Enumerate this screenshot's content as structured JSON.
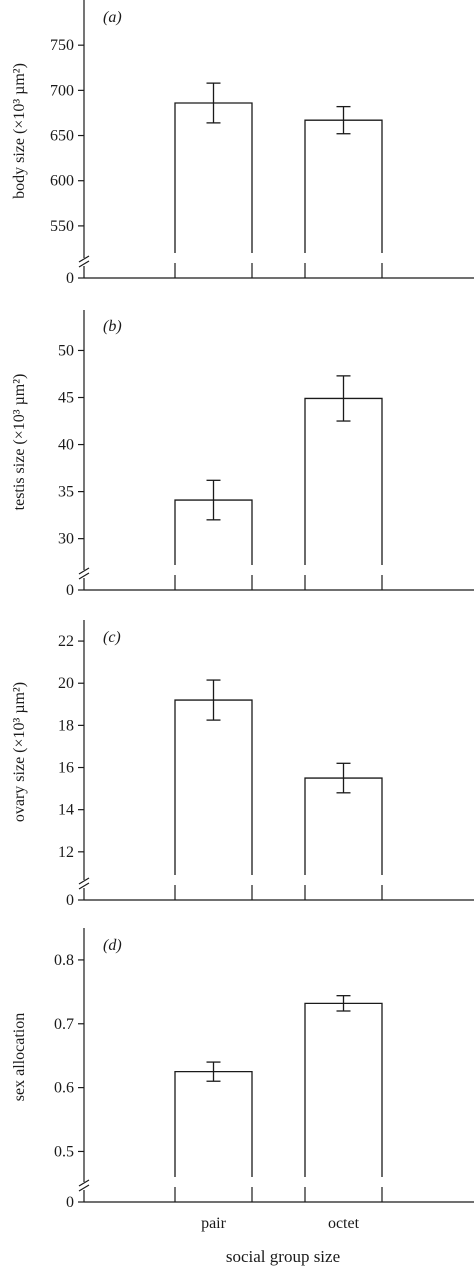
{
  "chart_data": [
    {
      "type": "bar",
      "panel": "(a)",
      "ylabel": "body size (×10³ µm²)",
      "categories": [
        "pair",
        "octet"
      ],
      "values": [
        686,
        667
      ],
      "errors": [
        22,
        15
      ],
      "yticks": [
        550,
        600,
        650,
        700,
        750
      ],
      "zero_label": "0",
      "axis_break": true,
      "ylim": [
        520,
        800
      ]
    },
    {
      "type": "bar",
      "panel": "(b)",
      "ylabel": "testis size (×10³ µm²)",
      "categories": [
        "pair",
        "octet"
      ],
      "values": [
        34.1,
        44.9
      ],
      "errors": [
        2.1,
        2.4
      ],
      "yticks": [
        30,
        35,
        40,
        45,
        50
      ],
      "zero_label": "0",
      "axis_break": true,
      "ylim": [
        27.2,
        54.3
      ]
    },
    {
      "type": "bar",
      "panel": "(c)",
      "ylabel": "ovary size (×10³ µm²)",
      "categories": [
        "pair",
        "octet"
      ],
      "values": [
        19.2,
        15.5
      ],
      "errors": [
        0.95,
        0.7
      ],
      "yticks": [
        12,
        14,
        16,
        18,
        20,
        22
      ],
      "zero_label": "0",
      "axis_break": true,
      "ylim": [
        10.9,
        23.0
      ]
    },
    {
      "type": "bar",
      "panel": "(d)",
      "ylabel": "sex allocation",
      "categories": [
        "pair",
        "octet"
      ],
      "values": [
        0.625,
        0.732
      ],
      "errors": [
        0.015,
        0.012
      ],
      "yticks": [
        0.5,
        0.6,
        0.7,
        0.8
      ],
      "zero_label": "0",
      "axis_break": true,
      "ylim": [
        0.46,
        0.85
      ]
    }
  ],
  "xlabel": "social group size"
}
